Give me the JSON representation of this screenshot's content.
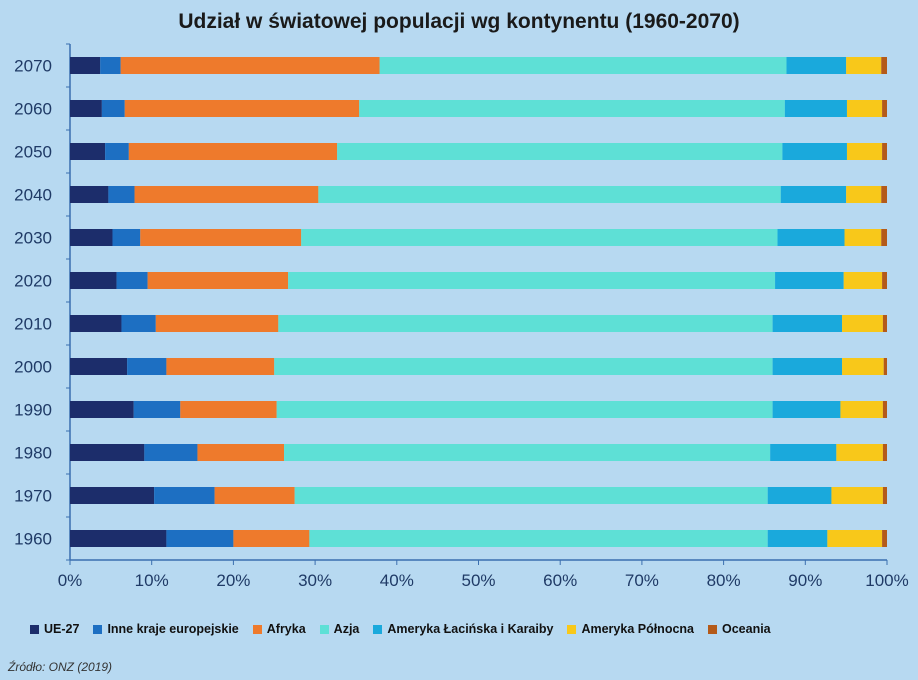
{
  "chart_data": {
    "type": "bar",
    "orientation": "horizontal",
    "stacked": true,
    "title": "Udział w światowej populacji wg kontynentu (1960-2070)",
    "categories": [
      "2070",
      "2060",
      "2050",
      "2040",
      "2030",
      "2020",
      "2010",
      "2000",
      "1990",
      "1980",
      "1970",
      "1960"
    ],
    "series": [
      {
        "name": "UE-27",
        "color": "#1c2d6b",
        "values": [
          3.7,
          3.9,
          4.3,
          4.7,
          5.2,
          5.7,
          6.3,
          7.0,
          7.8,
          9.1,
          10.3,
          11.8
        ]
      },
      {
        "name": "Inne kraje europejskie",
        "color": "#1d6fc2",
        "values": [
          2.5,
          2.8,
          2.9,
          3.2,
          3.4,
          3.8,
          4.2,
          4.8,
          5.7,
          6.5,
          7.4,
          8.2
        ]
      },
      {
        "name": "Afryka",
        "color": "#ee7a2c",
        "values": [
          31.7,
          28.7,
          25.5,
          22.5,
          19.7,
          17.2,
          15.0,
          13.2,
          11.8,
          10.6,
          9.8,
          9.3
        ]
      },
      {
        "name": "Azja",
        "color": "#5ee0d6",
        "values": [
          49.8,
          52.1,
          54.5,
          56.6,
          58.3,
          59.6,
          60.5,
          61.0,
          60.7,
          59.5,
          57.9,
          56.1
        ]
      },
      {
        "name": "Ameryka Łacińska i Karaiby",
        "color": "#1aa9dc",
        "values": [
          7.3,
          7.6,
          7.9,
          8.0,
          8.2,
          8.4,
          8.5,
          8.5,
          8.3,
          8.1,
          7.8,
          7.3
        ]
      },
      {
        "name": "Ameryka Północna",
        "color": "#f8c81a",
        "values": [
          4.3,
          4.3,
          4.3,
          4.3,
          4.5,
          4.7,
          5.0,
          5.1,
          5.2,
          5.7,
          6.3,
          6.7
        ]
      },
      {
        "name": "Oceania",
        "color": "#b45a1a",
        "values": [
          0.7,
          0.6,
          0.6,
          0.7,
          0.7,
          0.6,
          0.5,
          0.4,
          0.5,
          0.5,
          0.5,
          0.6
        ]
      }
    ],
    "x_ticks": [
      "0%",
      "10%",
      "20%",
      "30%",
      "40%",
      "50%",
      "60%",
      "70%",
      "80%",
      "90%",
      "100%"
    ],
    "xlim": [
      0,
      100
    ],
    "legend_position": "bottom"
  },
  "source": "Źródło: ONZ (2019)"
}
